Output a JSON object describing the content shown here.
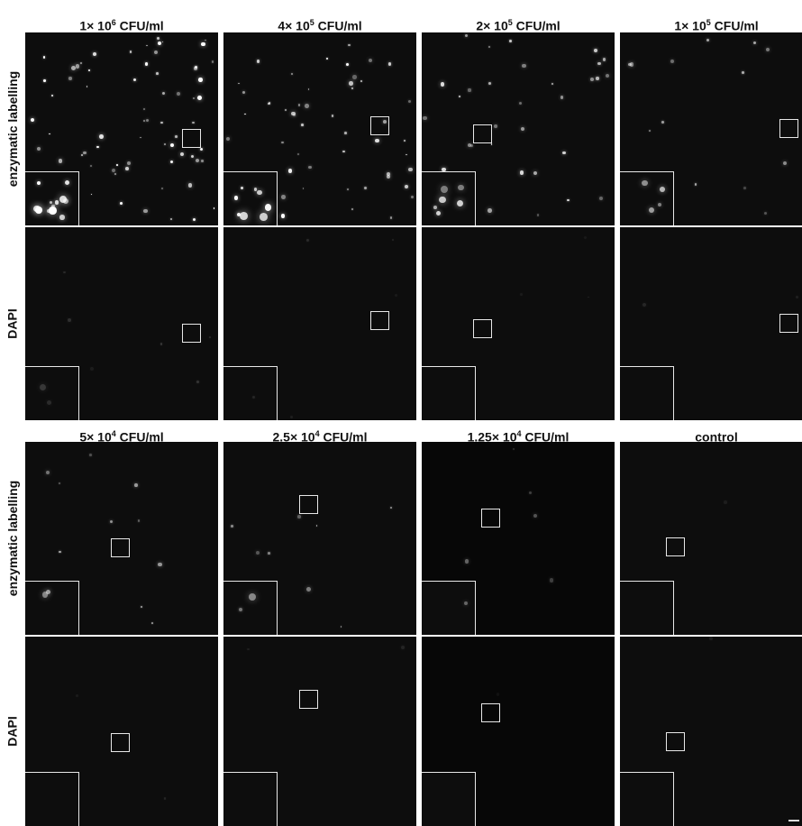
{
  "figure": {
    "top_block": {
      "columns": [
        {
          "base": "1× 10",
          "exp": "6",
          "unit": " CFU/ml"
        },
        {
          "base": "4× 10",
          "exp": "5",
          "unit": " CFU/ml"
        },
        {
          "base": "2× 10",
          "exp": "5",
          "unit": " CFU/ml"
        },
        {
          "base": "1× 10",
          "exp": "5",
          "unit": " CFU/ml"
        }
      ],
      "row_labels": [
        "enzymatic labelling",
        "DAPI"
      ]
    },
    "bottom_block": {
      "columns": [
        {
          "base": "5× 10",
          "exp": "4",
          "unit": " CFU/ml"
        },
        {
          "base": "2.5× 10",
          "exp": "4",
          "unit": " CFU/ml"
        },
        {
          "base": "1.25× 10",
          "exp": "4",
          "unit": " CFU/ml"
        },
        {
          "base": "control",
          "exp": "",
          "unit": ""
        }
      ],
      "row_labels": [
        "enzymatic labelling",
        "DAPI"
      ]
    },
    "colors": {
      "panel_background": "#0d0d0d",
      "outline": "#e8e8e8",
      "signal": "#ffffff"
    }
  }
}
